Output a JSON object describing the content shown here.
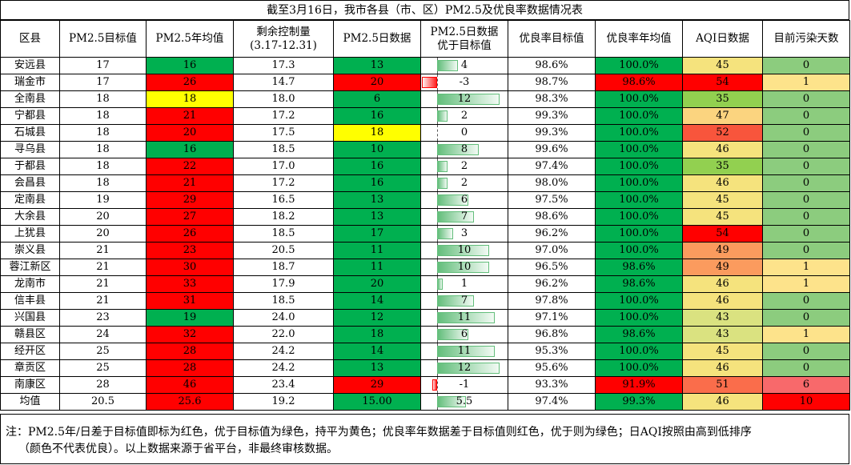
{
  "title": "截至3月16日，我市各县（市、区）PM2.5及优良率数据情况表",
  "headers": [
    "区县",
    "PM2.5目标值",
    "PM2.5年均值",
    "剩余控制量",
    "(3.17-12.31)",
    "PM2.5日数据",
    "PM2.5日数据",
    "优于目标值",
    "优良率目标值",
    "优良率年均值",
    "AQI日数据",
    "目前污染天数"
  ],
  "rows": [
    {
      "name": "安远县",
      "target": "17",
      "annual": "16",
      "remain": "17.3",
      "daily": "13",
      "diff": "4",
      "rate_target": "98.6%",
      "rate_annual": "100.0%",
      "aqi": "45",
      "days": "0"
    },
    {
      "name": "瑞金市",
      "target": "17",
      "annual": "26",
      "remain": "14.7",
      "daily": "20",
      "diff": "-3",
      "rate_target": "98.7%",
      "rate_annual": "98.6%",
      "aqi": "54",
      "days": "1"
    },
    {
      "name": "全南县",
      "target": "18",
      "annual": "18",
      "remain": "18.0",
      "daily": "6",
      "diff": "12",
      "rate_target": "98.3%",
      "rate_annual": "100.0%",
      "aqi": "35",
      "days": "0"
    },
    {
      "name": "宁都县",
      "target": "18",
      "annual": "21",
      "remain": "17.2",
      "daily": "16",
      "diff": "2",
      "rate_target": "99.3%",
      "rate_annual": "100.0%",
      "aqi": "47",
      "days": "0"
    },
    {
      "name": "石城县",
      "target": "18",
      "annual": "20",
      "remain": "17.5",
      "daily": "18",
      "diff": "0",
      "rate_target": "99.3%",
      "rate_annual": "100.0%",
      "aqi": "52",
      "days": "0"
    },
    {
      "name": "寻乌县",
      "target": "18",
      "annual": "16",
      "remain": "18.5",
      "daily": "10",
      "diff": "8",
      "rate_target": "99.6%",
      "rate_annual": "100.0%",
      "aqi": "46",
      "days": "0"
    },
    {
      "name": "于都县",
      "target": "18",
      "annual": "22",
      "remain": "17.0",
      "daily": "16",
      "diff": "2",
      "rate_target": "97.4%",
      "rate_annual": "100.0%",
      "aqi": "35",
      "days": "0"
    },
    {
      "name": "会昌县",
      "target": "18",
      "annual": "21",
      "remain": "17.2",
      "daily": "16",
      "diff": "2",
      "rate_target": "98.0%",
      "rate_annual": "100.0%",
      "aqi": "46",
      "days": "0"
    },
    {
      "name": "定南县",
      "target": "19",
      "annual": "29",
      "remain": "16.5",
      "daily": "13",
      "diff": "6",
      "rate_target": "97.5%",
      "rate_annual": "100.0%",
      "aqi": "45",
      "days": "0"
    },
    {
      "name": "大余县",
      "target": "20",
      "annual": "27",
      "remain": "18.2",
      "daily": "13",
      "diff": "7",
      "rate_target": "98.6%",
      "rate_annual": "100.0%",
      "aqi": "45",
      "days": "0"
    },
    {
      "name": "上犹县",
      "target": "20",
      "annual": "26",
      "remain": "18.5",
      "daily": "17",
      "diff": "3",
      "rate_target": "96.2%",
      "rate_annual": "100.0%",
      "aqi": "54",
      "days": "0"
    },
    {
      "name": "崇义县",
      "target": "21",
      "annual": "23",
      "remain": "20.5",
      "daily": "11",
      "diff": "10",
      "rate_target": "97.0%",
      "rate_annual": "100.0%",
      "aqi": "49",
      "days": "0"
    },
    {
      "name": "蓉江新区",
      "target": "21",
      "annual": "30",
      "remain": "18.7",
      "daily": "11",
      "diff": "10",
      "rate_target": "96.5%",
      "rate_annual": "98.6%",
      "aqi": "49",
      "days": "1"
    },
    {
      "name": "龙南市",
      "target": "21",
      "annual": "33",
      "remain": "17.9",
      "daily": "20",
      "diff": "1",
      "rate_target": "96.2%",
      "rate_annual": "98.6%",
      "aqi": "46",
      "days": "1"
    },
    {
      "name": "信丰县",
      "target": "21",
      "annual": "31",
      "remain": "18.5",
      "daily": "14",
      "diff": "7",
      "rate_target": "97.8%",
      "rate_annual": "100.0%",
      "aqi": "46",
      "days": "0"
    },
    {
      "name": "兴国县",
      "target": "23",
      "annual": "19",
      "remain": "24.0",
      "daily": "12",
      "diff": "11",
      "rate_target": "97.1%",
      "rate_annual": "100.0%",
      "aqi": "43",
      "days": "0"
    },
    {
      "name": "赣县区",
      "target": "24",
      "annual": "32",
      "remain": "22.0",
      "daily": "18",
      "diff": "6",
      "rate_target": "96.8%",
      "rate_annual": "98.6%",
      "aqi": "43",
      "days": "1"
    },
    {
      "name": "经开区",
      "target": "25",
      "annual": "28",
      "remain": "24.2",
      "daily": "14",
      "diff": "11",
      "rate_target": "95.3%",
      "rate_annual": "100.0%",
      "aqi": "45",
      "days": "0"
    },
    {
      "name": "章贡区",
      "target": "25",
      "annual": "28",
      "remain": "24.2",
      "daily": "13",
      "diff": "12",
      "rate_target": "95.6%",
      "rate_annual": "100.0%",
      "aqi": "46",
      "days": "0"
    },
    {
      "name": "南康区",
      "target": "28",
      "annual": "46",
      "remain": "23.4",
      "daily": "29",
      "diff": "-1",
      "rate_target": "93.3%",
      "rate_annual": "91.9%",
      "aqi": "51",
      "days": "6"
    },
    {
      "name": "均值",
      "target": "20.5",
      "annual": "25.6",
      "remain": "19.2",
      "daily": "15.00",
      "diff": "5.5",
      "rate_target": "97.4%",
      "rate_annual": "99.3%",
      "aqi": "46",
      "days": "10"
    }
  ],
  "note_line1": "注：PM2.5年/日差于目标值即标为红色，优于目标值为绿色，持平为黄色；优良率年数据差于目标值则红色，优于则为绿色；日AQI按照由高到低排序",
  "note_line2": "（颜色不代表优良）。以上数据来源于省平台，非最终审核数据。",
  "colors": {
    "green": "#00b050",
    "red": "#ff0000",
    "yellow": "#ffff00"
  }
}
